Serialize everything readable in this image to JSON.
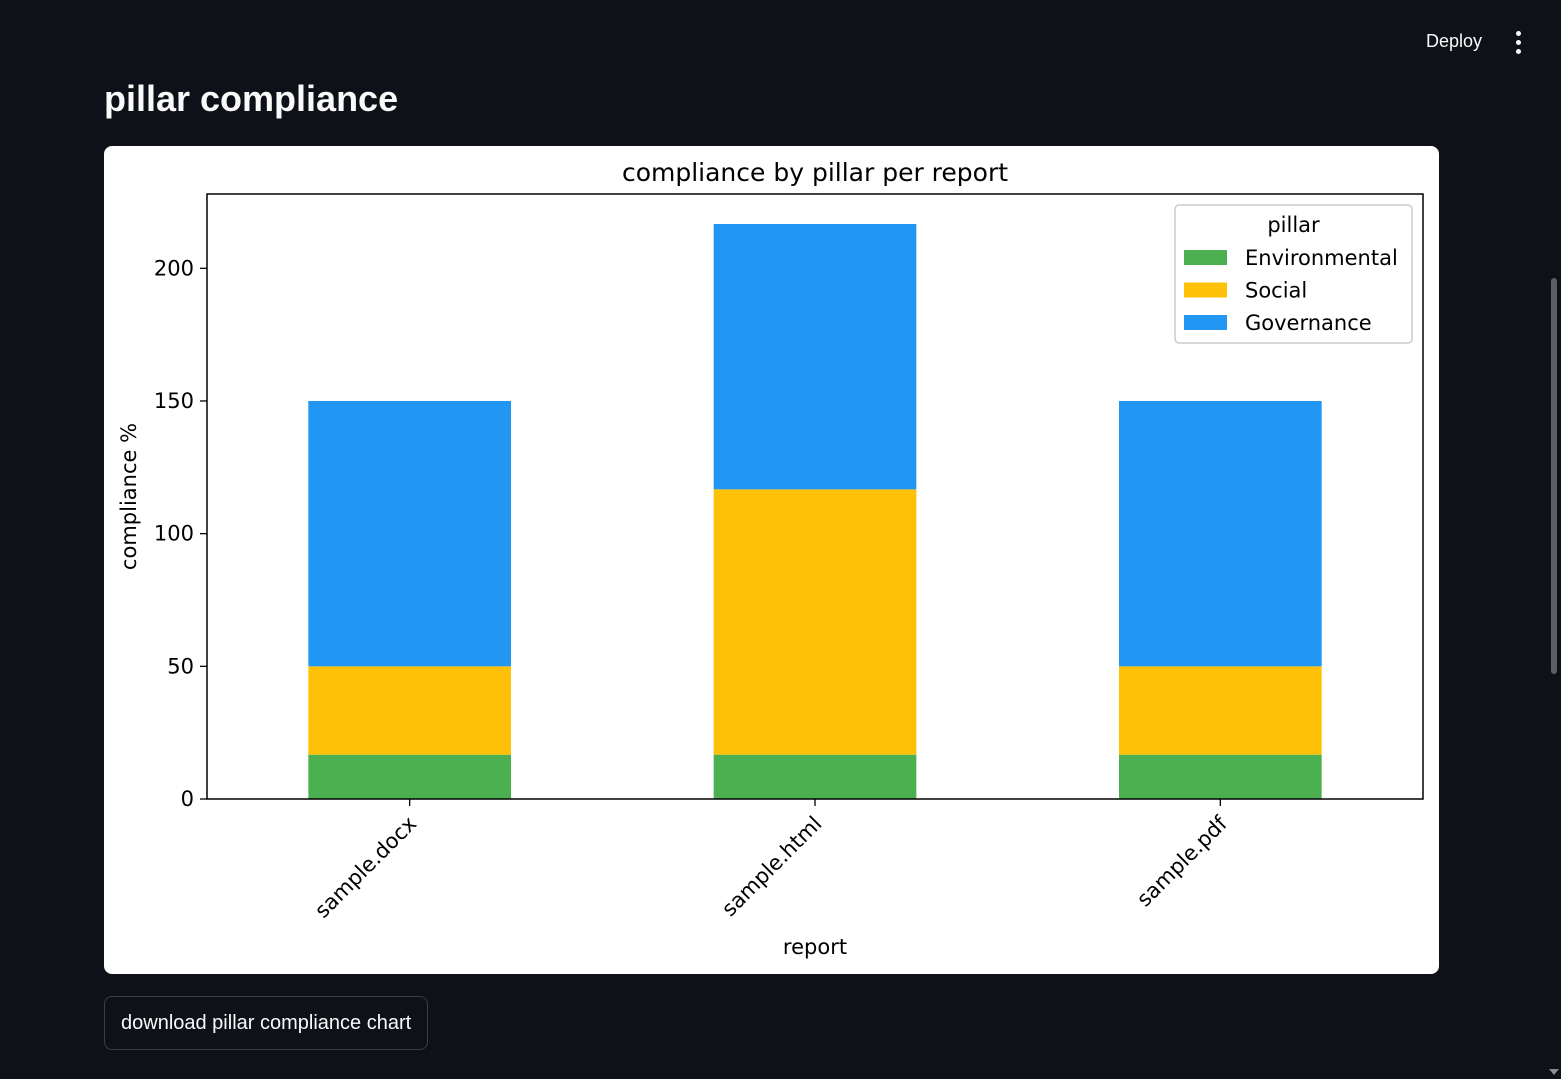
{
  "header": {
    "deploy_label": "Deploy",
    "menu_icon": "vertical-dots-icon"
  },
  "page": {
    "title": "pillar compliance"
  },
  "download": {
    "label": "download pillar compliance chart"
  },
  "chart_data": {
    "type": "bar",
    "stacked": true,
    "title": "compliance by pillar per report",
    "xlabel": "report",
    "ylabel": "compliance %",
    "categories": [
      "sample.docx",
      "sample.html",
      "sample.pdf"
    ],
    "ylim": [
      0,
      228
    ],
    "yticks": [
      0,
      50,
      100,
      150,
      200
    ],
    "legend": {
      "title": "pillar",
      "placement": "top-right"
    },
    "grid": false,
    "series": [
      {
        "name": "Environmental",
        "color": "#4caf50",
        "values": [
          16.7,
          16.7,
          16.7
        ]
      },
      {
        "name": "Social",
        "color": "#ffc107",
        "values": [
          33.3,
          100,
          33.3
        ]
      },
      {
        "name": "Governance",
        "color": "#2196f3",
        "values": [
          100,
          100,
          100
        ]
      }
    ]
  }
}
